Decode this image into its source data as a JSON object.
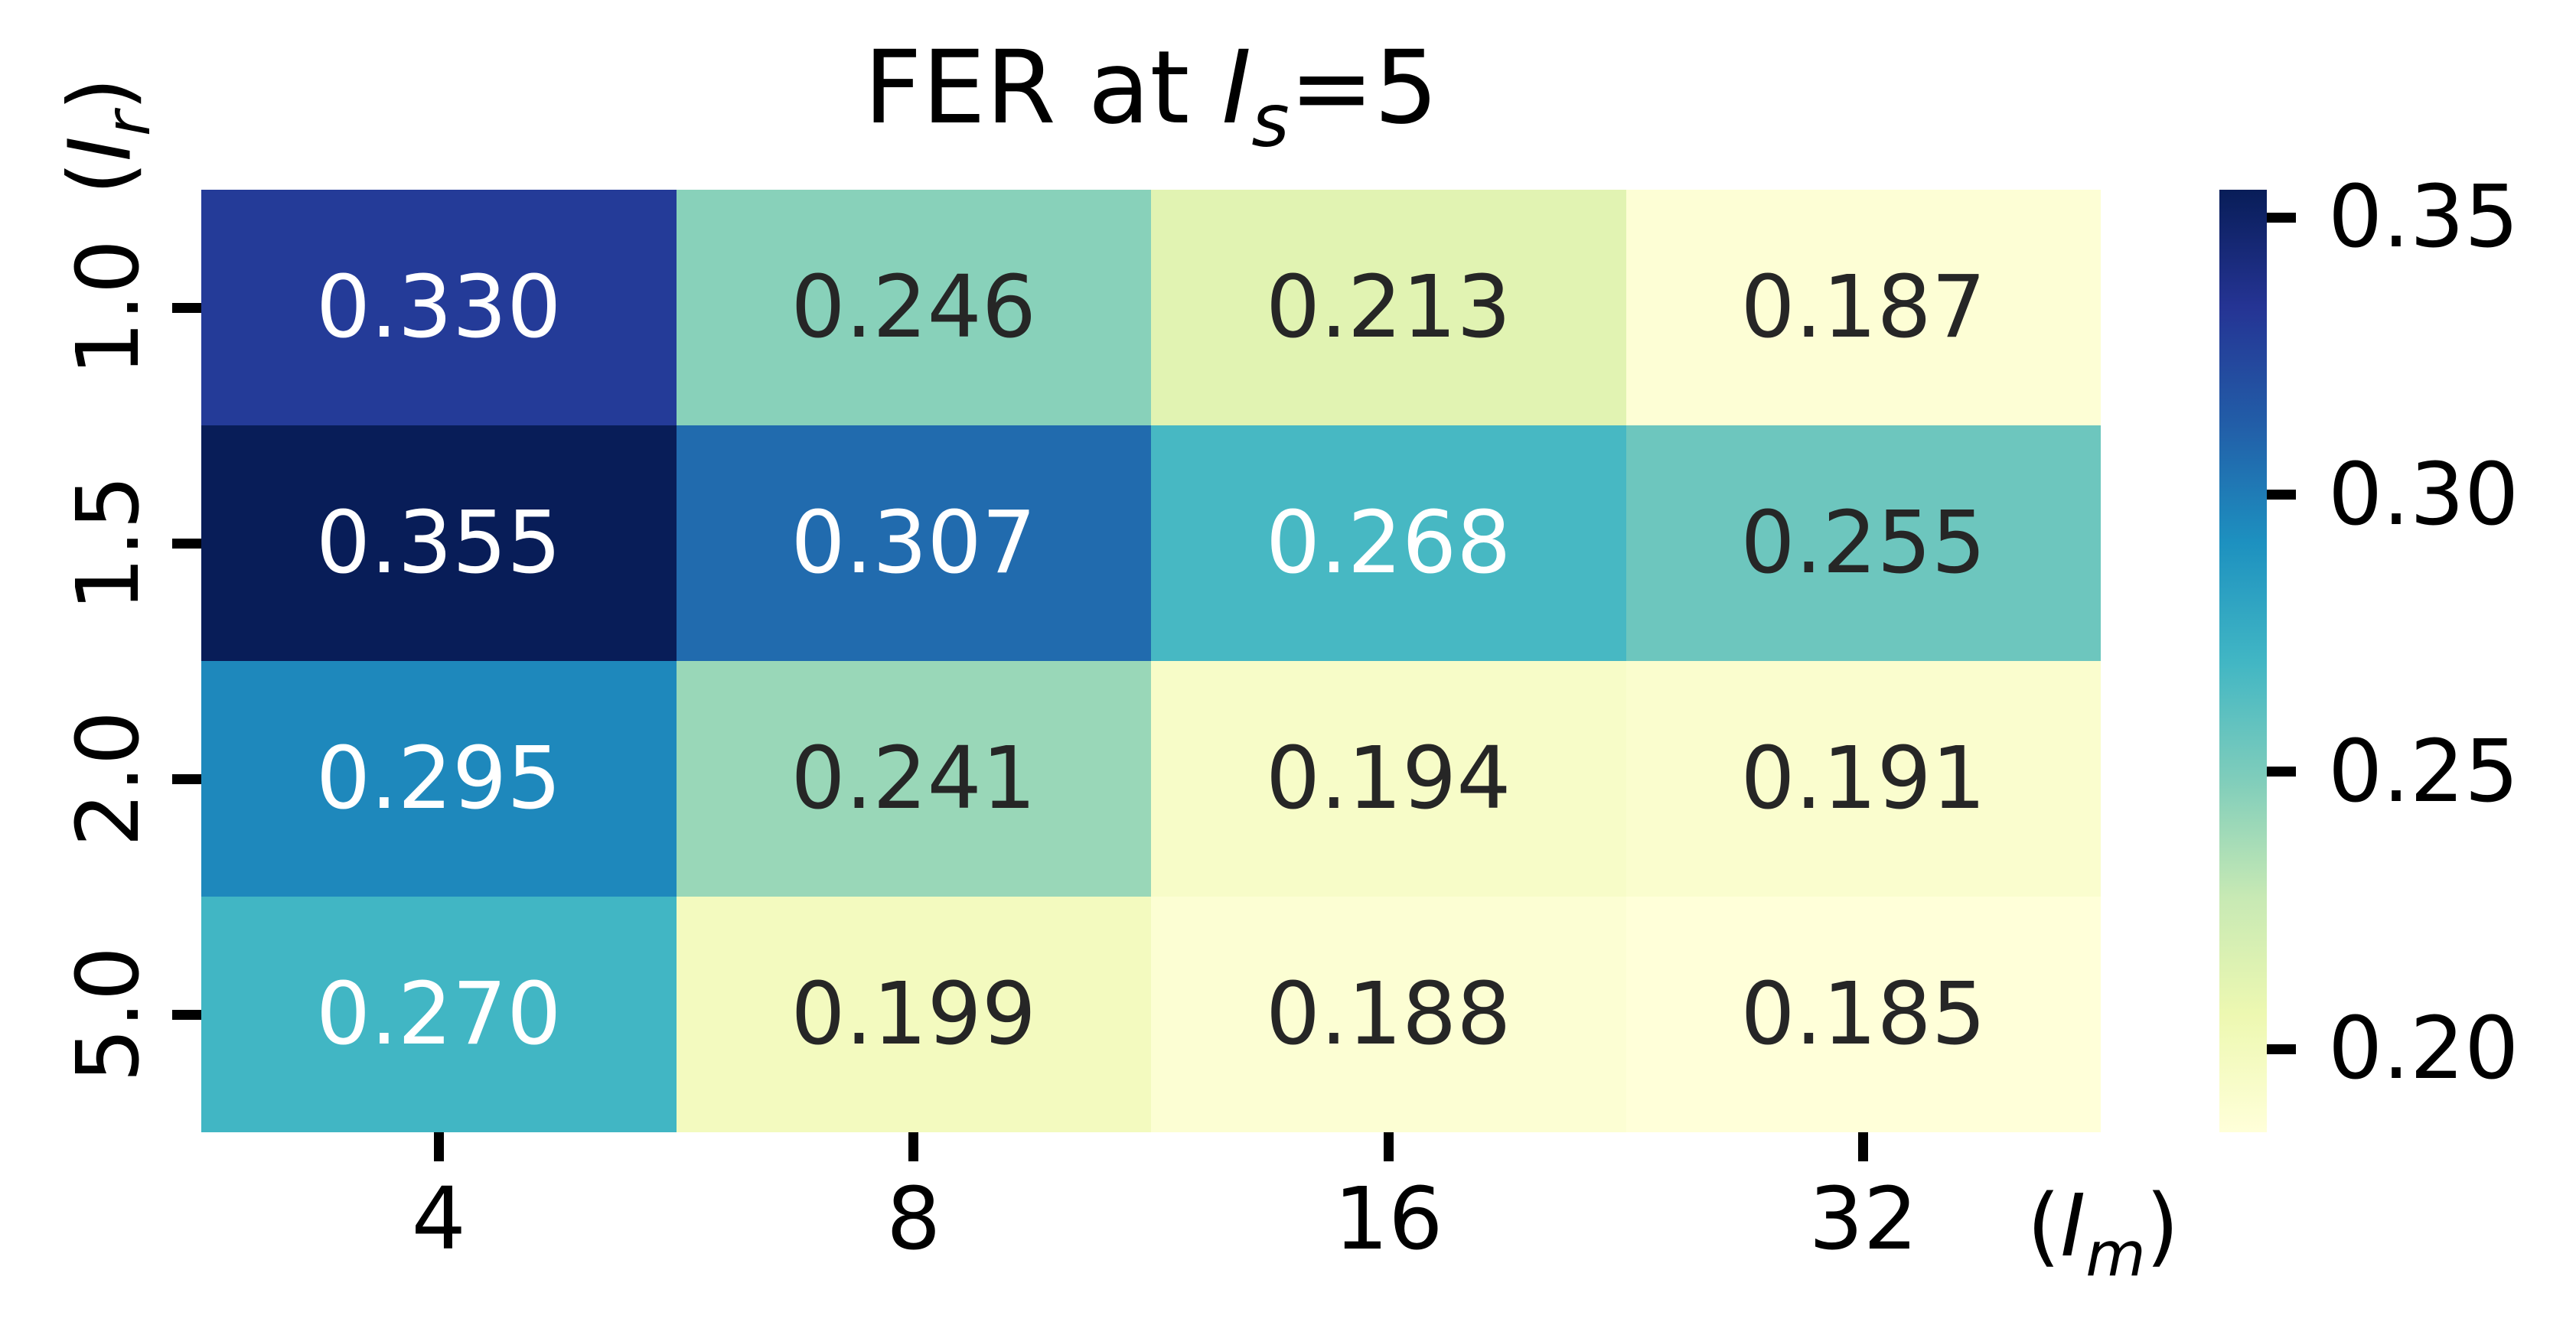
{
  "figure": {
    "title": {
      "text_before": "FER at ",
      "var_symbol": "I",
      "var_subscript": "s",
      "text_after": "=5"
    }
  },
  "axes": {
    "y_axis_label": {
      "prefix": "(",
      "symbol": "I",
      "subscript": "r",
      "suffix": ")"
    },
    "x_axis_label": {
      "prefix": "(",
      "symbol": "I",
      "subscript": "m",
      "suffix": ")"
    },
    "x_tick_labels": [
      "4",
      "8",
      "16",
      "32"
    ],
    "y_tick_labels": [
      "1.0",
      "1.5",
      "2.0",
      "5.0"
    ]
  },
  "colorbar": {
    "tick_labels": [
      "0.35",
      "0.30",
      "0.25",
      "0.20"
    ],
    "tick_values": [
      0.35,
      0.3,
      0.25,
      0.2
    ]
  },
  "chart_data": {
    "type": "heatmap",
    "title": "FER at I_s=5",
    "xlabel": "(I_m)",
    "ylabel": "(I_r)",
    "x_categories": [
      "4",
      "8",
      "16",
      "32"
    ],
    "y_categories": [
      "1.0",
      "1.5",
      "2.0",
      "5.0"
    ],
    "values": [
      [
        0.33,
        0.246,
        0.213,
        0.187
      ],
      [
        0.355,
        0.307,
        0.268,
        0.255
      ],
      [
        0.295,
        0.241,
        0.194,
        0.191
      ],
      [
        0.27,
        0.199,
        0.188,
        0.185
      ]
    ],
    "cell_labels": [
      [
        "0.330",
        "0.246",
        "0.213",
        "0.187"
      ],
      [
        "0.355",
        "0.307",
        "0.268",
        "0.255"
      ],
      [
        "0.295",
        "0.241",
        "0.194",
        "0.191"
      ],
      [
        "0.270",
        "0.199",
        "0.188",
        "0.185"
      ]
    ],
    "vmin": 0.185,
    "vmax": 0.355,
    "colormap": "YlGnBu",
    "colormap_anchors_rgb": [
      [
        255,
        255,
        217
      ],
      [
        237,
        248,
        177
      ],
      [
        199,
        233,
        180
      ],
      [
        127,
        205,
        187
      ],
      [
        65,
        182,
        196
      ],
      [
        29,
        145,
        192
      ],
      [
        34,
        94,
        168
      ],
      [
        37,
        52,
        148
      ],
      [
        8,
        29,
        88
      ]
    ],
    "annotation_colors": {
      "light_text": "#ffffff",
      "dark_text": "#262626",
      "luminance_threshold": 0.408
    },
    "colorbar_position": "right",
    "grid": false
  }
}
